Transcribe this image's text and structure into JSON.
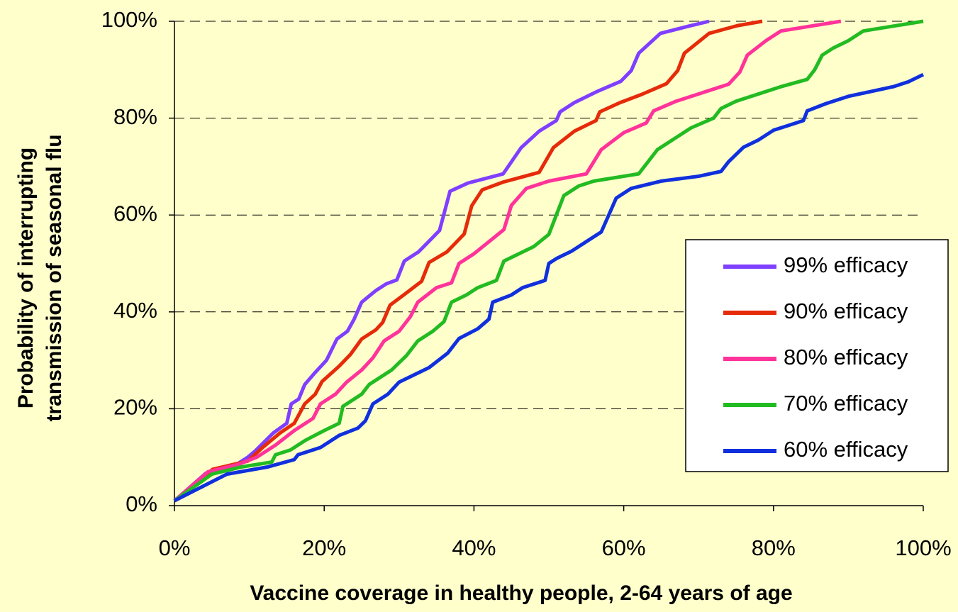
{
  "chart_data": {
    "type": "line",
    "xlabel": "Vaccine coverage in healthy people, 2-64 years of age",
    "ylabel": [
      "Probability of interrupting",
      "transmission of seasonal flu"
    ],
    "xlim": [
      0,
      100
    ],
    "ylim": [
      0,
      100
    ],
    "xticks": [
      {
        "value": 0,
        "label": "0%"
      },
      {
        "value": 20,
        "label": "20%"
      },
      {
        "value": 40,
        "label": "40%"
      },
      {
        "value": 60,
        "label": "60%"
      },
      {
        "value": 80,
        "label": "80%"
      },
      {
        "value": 100,
        "label": "100%"
      }
    ],
    "yticks": [
      {
        "value": 0,
        "label": "0%"
      },
      {
        "value": 20,
        "label": "20%"
      },
      {
        "value": 40,
        "label": "40%"
      },
      {
        "value": 60,
        "label": "60%"
      },
      {
        "value": 80,
        "label": "80%"
      },
      {
        "value": 100,
        "label": "100%"
      }
    ],
    "grid": true,
    "legend": "right",
    "series": [
      {
        "name": "99% efficacy",
        "color": "#7f3fff",
        "x": [
          0,
          4.2,
          8,
          9.8,
          10.8,
          13.2,
          15,
          15.6,
          16.6,
          17.4,
          18.8,
          20.3,
          21.7,
          23.1,
          24,
          25,
          26.9,
          28.3,
          29.7,
          30.7,
          32.6,
          34,
          35.4,
          36.8,
          39.2,
          43.9,
          46.3,
          48.7,
          51,
          51.5,
          53.4,
          56.3,
          59.6,
          61,
          62,
          64.9,
          68.7,
          71.4
        ],
        "values": [
          1,
          6.7,
          8.2,
          10,
          11.3,
          15,
          17,
          21,
          22,
          25,
          27.5,
          30,
          34.4,
          36,
          38.5,
          42,
          44.4,
          45.8,
          46.6,
          50.5,
          52.4,
          54.6,
          56.8,
          64.9,
          66.6,
          68.5,
          73.9,
          77.3,
          79.5,
          81.3,
          83.2,
          85.4,
          87.6,
          89.8,
          93.4,
          97.5,
          99,
          100
        ]
      },
      {
        "name": "90% efficacy",
        "color": "#e52b0a",
        "x": [
          0,
          5.1,
          9.8,
          11.7,
          14.1,
          16,
          17.4,
          18.8,
          19.7,
          22,
          23.5,
          25,
          26.9,
          27.8,
          28.8,
          30.7,
          33,
          34,
          36.4,
          38.7,
          39.7,
          41.1,
          43.9,
          48.7,
          50.6,
          53.4,
          56.3,
          56.8,
          59.5,
          62.4,
          65.7,
          67.2,
          68.1,
          71.4,
          75.2,
          78.5
        ],
        "values": [
          1,
          7.5,
          9.2,
          11.9,
          15,
          17,
          21,
          23,
          25.6,
          28.8,
          31.2,
          34.4,
          36.3,
          37.8,
          41.4,
          43.6,
          46.3,
          50.2,
          52.4,
          56.1,
          61.9,
          65.2,
          66.8,
          68.8,
          73.9,
          77.3,
          79.5,
          81.3,
          83.2,
          84.9,
          87.1,
          89.8,
          93.4,
          97.5,
          99.1,
          100
        ]
      },
      {
        "name": "80% efficacy",
        "color": "#ff3399",
        "x": [
          0,
          4.5,
          8.5,
          11,
          13.5,
          16,
          18.5,
          19.5,
          21.5,
          23,
          25,
          26.5,
          28,
          30,
          31.5,
          32.5,
          35,
          37,
          38,
          40,
          42,
          44,
          45,
          47,
          50,
          55,
          57,
          60,
          63,
          64,
          67,
          70,
          74,
          75.5,
          76.5,
          79,
          81,
          85,
          89
        ],
        "values": [
          1,
          7,
          8.5,
          10,
          12.5,
          15.5,
          18,
          21,
          23,
          25.5,
          28,
          30.5,
          34,
          36,
          39,
          42,
          45,
          46,
          50,
          52,
          54.5,
          57,
          62,
          65.5,
          67,
          68.5,
          73.5,
          77,
          79,
          81.5,
          83.5,
          85,
          87,
          89.5,
          93,
          96,
          98,
          99,
          100
        ]
      },
      {
        "name": "70% efficacy",
        "color": "#22bb22",
        "x": [
          0,
          5,
          9,
          13,
          13.5,
          15.5,
          17.5,
          20,
          22,
          22.5,
          25,
          26,
          27.5,
          29,
          31,
          32.5,
          34.5,
          36,
          37,
          39,
          40.5,
          43,
          44,
          46,
          48,
          50,
          51,
          52,
          54,
          56,
          62,
          64.5,
          67,
          69,
          72,
          73,
          75,
          78,
          81,
          84.5,
          85.5,
          86.5,
          88,
          90,
          92,
          96,
          100
        ],
        "values": [
          1,
          6.5,
          8,
          9,
          10.5,
          11.5,
          13.5,
          15.5,
          17,
          20.5,
          23,
          25,
          26.5,
          28,
          31,
          34,
          36,
          38,
          42,
          43.5,
          45,
          46.5,
          50.5,
          52,
          53.5,
          56,
          60,
          64,
          66,
          67,
          68.5,
          73.5,
          76,
          78,
          80,
          82,
          83.5,
          85,
          86.5,
          88,
          90,
          93,
          94.5,
          96,
          98,
          99,
          100
        ]
      },
      {
        "name": "60% efficacy",
        "color": "#1030dd",
        "x": [
          0,
          7,
          12.5,
          16,
          16.5,
          19.5,
          22,
          24.5,
          25.5,
          26.5,
          28.5,
          30,
          32,
          34,
          36.5,
          38,
          40.5,
          42,
          42.5,
          45,
          46.5,
          49.5,
          50,
          51,
          53,
          55,
          57,
          58,
          59,
          61,
          65,
          70,
          73,
          74,
          76,
          78,
          80,
          82,
          84,
          84.5,
          87,
          90,
          93,
          96,
          98,
          100
        ],
        "values": [
          1,
          6.5,
          8,
          9.5,
          10.5,
          12,
          14.5,
          16,
          17.5,
          21,
          23,
          25.5,
          27,
          28.5,
          31.5,
          34.5,
          36.5,
          38.5,
          42,
          43.5,
          45,
          46.5,
          50,
          51,
          52.5,
          54.5,
          56.5,
          60,
          63.5,
          65.5,
          67,
          68,
          69,
          71,
          74,
          75.5,
          77.5,
          78.5,
          79.5,
          81.5,
          83,
          84.5,
          85.5,
          86.5,
          87.5,
          89
        ]
      }
    ]
  }
}
